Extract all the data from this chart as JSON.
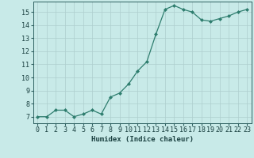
{
  "x": [
    0,
    1,
    2,
    3,
    4,
    5,
    6,
    7,
    8,
    9,
    10,
    11,
    12,
    13,
    14,
    15,
    16,
    17,
    18,
    19,
    20,
    21,
    22,
    23
  ],
  "y": [
    7.0,
    7.0,
    7.5,
    7.5,
    7.0,
    7.2,
    7.5,
    7.2,
    8.5,
    8.8,
    9.5,
    10.5,
    11.2,
    13.3,
    15.2,
    15.5,
    15.2,
    15.0,
    14.4,
    14.3,
    14.5,
    14.7,
    15.0,
    15.2
  ],
  "xlabel": "Humidex (Indice chaleur)",
  "ylim": [
    6.5,
    15.8
  ],
  "xlim": [
    -0.5,
    23.5
  ],
  "yticks": [
    7,
    8,
    9,
    10,
    11,
    12,
    13,
    14,
    15
  ],
  "xticks": [
    0,
    1,
    2,
    3,
    4,
    5,
    6,
    7,
    8,
    9,
    10,
    11,
    12,
    13,
    14,
    15,
    16,
    17,
    18,
    19,
    20,
    21,
    22,
    23
  ],
  "line_color": "#2e7d6e",
  "marker": "D",
  "marker_size": 2.0,
  "bg_color": "#c8eae8",
  "grid_color": "#aecece",
  "axis_color": "#2e6060",
  "label_color": "#1a4040",
  "font_family": "monospace",
  "xlabel_fontsize": 6.5,
  "tick_fontsize": 6.0,
  "linewidth": 0.9
}
